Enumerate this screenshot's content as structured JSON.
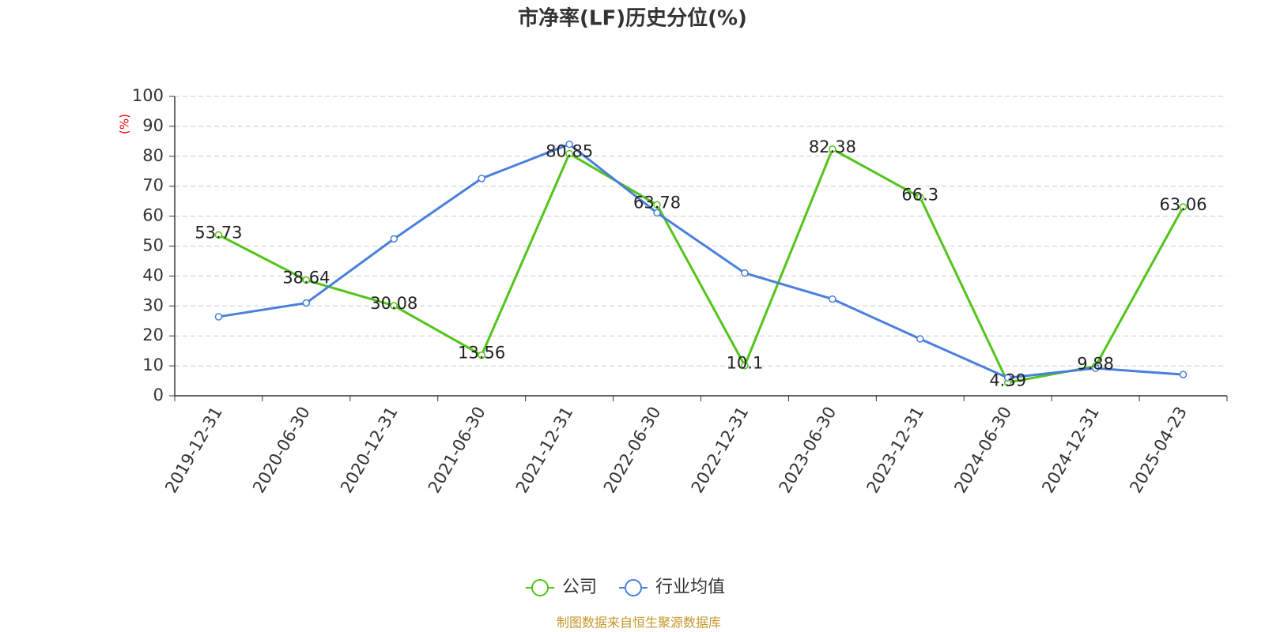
{
  "chart_data": {
    "type": "line",
    "title": "市净率(LF)历史分位(%)",
    "y_label": "(%)",
    "source": "制图数据来自恒生聚源数据库",
    "categories": [
      "2019-12-31",
      "2020-06-30",
      "2020-12-31",
      "2021-06-30",
      "2021-12-31",
      "2022-06-30",
      "2022-12-31",
      "2023-06-30",
      "2023-12-31",
      "2024-06-30",
      "2024-12-31",
      "2025-04-23"
    ],
    "series": [
      {
        "name": "公司",
        "color": "#52c41a",
        "values": [
          53.73,
          38.64,
          30.08,
          13.56,
          80.85,
          63.78,
          10.1,
          82.38,
          66.3,
          4.39,
          9.88,
          63.06
        ]
      },
      {
        "name": "行业均值",
        "color": "#4a7fdc",
        "values": [
          26.4,
          31.0,
          52.4,
          72.6,
          84.0,
          61.1,
          41.0,
          32.3,
          19.0,
          6.0,
          9.2,
          7.1
        ]
      }
    ],
    "ylim": [
      0,
      100
    ],
    "yticks": [
      0,
      10,
      20,
      30,
      40,
      50,
      60,
      70,
      80,
      90,
      100
    ],
    "grid": true
  }
}
